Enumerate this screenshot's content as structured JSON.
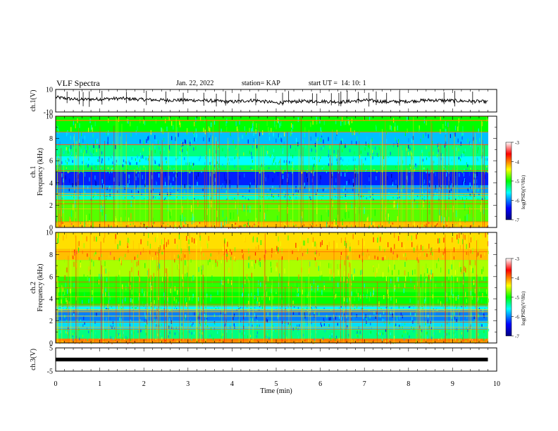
{
  "header": {
    "title": "VLF Spectra",
    "date": "Jan. 22, 2022",
    "station": "station= KAP",
    "start": "start UT =  14: 10: 1"
  },
  "chart_data": [
    {
      "type": "line",
      "panel": "ch1-waveform",
      "ylabel": "ch.1(V)",
      "ylim": [
        -10,
        10
      ],
      "y_ticks": [
        "10",
        "-10"
      ],
      "x": [
        0,
        0.5,
        1,
        1.5,
        2,
        2.5,
        3,
        3.5,
        4,
        4.5,
        5,
        5.5,
        6,
        6.5,
        7,
        7.5,
        8,
        8.5,
        9,
        9.5,
        9.8
      ],
      "y": [
        3.0,
        1.0,
        1.5,
        2.0,
        1.0,
        0.5,
        0.5,
        0.0,
        -1.0,
        0.5,
        -2.0,
        -0.5,
        -0.5,
        -1.0,
        0.5,
        -1.0,
        -0.5,
        0.5,
        0.0,
        -0.5,
        -1.0
      ]
    },
    {
      "type": "heatmap",
      "panel": "ch1-spectrogram",
      "ylabel": "ch.1 Frequency (kHz)",
      "ylim": [
        0,
        10
      ],
      "y_ticks": [
        "0",
        "2",
        "4",
        "6",
        "8",
        "10"
      ],
      "colorbar": {
        "label": "log(PSD)(V²/Hz)",
        "ticks": [
          "-3",
          "-4",
          "-5",
          "-6",
          "-7"
        ],
        "range": [
          -7,
          -3
        ]
      },
      "bands_khz": [
        {
          "from": 0,
          "to": 0.5,
          "level": -4.2
        },
        {
          "from": 0.5,
          "to": 2.5,
          "level": -4.8
        },
        {
          "from": 2.5,
          "to": 3.0,
          "level": -5.5
        },
        {
          "from": 3.0,
          "to": 3.8,
          "level": -5.9
        },
        {
          "from": 3.8,
          "to": 5.0,
          "level": -6.3
        },
        {
          "from": 5.0,
          "to": 5.6,
          "level": -5.2
        },
        {
          "from": 5.6,
          "to": 6.4,
          "level": -5.6
        },
        {
          "from": 6.4,
          "to": 7.4,
          "level": -5.3
        },
        {
          "from": 7.4,
          "to": 8.6,
          "level": -5.8
        },
        {
          "from": 8.6,
          "to": 10,
          "level": -5.0
        }
      ]
    },
    {
      "type": "heatmap",
      "panel": "ch2-spectrogram",
      "ylabel": "ch.2 Frequency (kHz)",
      "ylim": [
        0,
        10
      ],
      "y_ticks": [
        "0",
        "2",
        "4",
        "6",
        "8",
        "10"
      ],
      "colorbar": {
        "label": "log(PSD)(V²/Hz)",
        "ticks": [
          "-3",
          "-4",
          "-5",
          "-6",
          "-7"
        ],
        "range": [
          -7,
          -3
        ]
      },
      "bands_khz": [
        {
          "from": 0,
          "to": 0.4,
          "level": -4.0
        },
        {
          "from": 0.4,
          "to": 1.2,
          "level": -5.3
        },
        {
          "from": 1.2,
          "to": 2.0,
          "level": -5.7
        },
        {
          "from": 2.0,
          "to": 3.0,
          "level": -6.0
        },
        {
          "from": 3.0,
          "to": 3.4,
          "level": -5.6
        },
        {
          "from": 3.4,
          "to": 4.6,
          "level": -5.0
        },
        {
          "from": 4.6,
          "to": 6.0,
          "level": -4.9
        },
        {
          "from": 6.0,
          "to": 7.5,
          "level": -4.6
        },
        {
          "from": 7.5,
          "to": 8.5,
          "level": -4.2
        },
        {
          "from": 8.5,
          "to": 10,
          "level": -4.3
        }
      ]
    },
    {
      "type": "line",
      "panel": "ch3-waveform",
      "ylabel": "ch.3(V)",
      "ylim": [
        -5,
        5
      ],
      "y_ticks": [
        "5",
        "-5"
      ],
      "x": [
        0,
        9.8
      ],
      "y": [
        0,
        0
      ]
    }
  ],
  "x_axis": {
    "label": "Time (min)",
    "ticks": [
      "0",
      "1",
      "2",
      "3",
      "4",
      "5",
      "6",
      "7",
      "8",
      "9",
      "10"
    ],
    "xlim": [
      0,
      10
    ]
  }
}
